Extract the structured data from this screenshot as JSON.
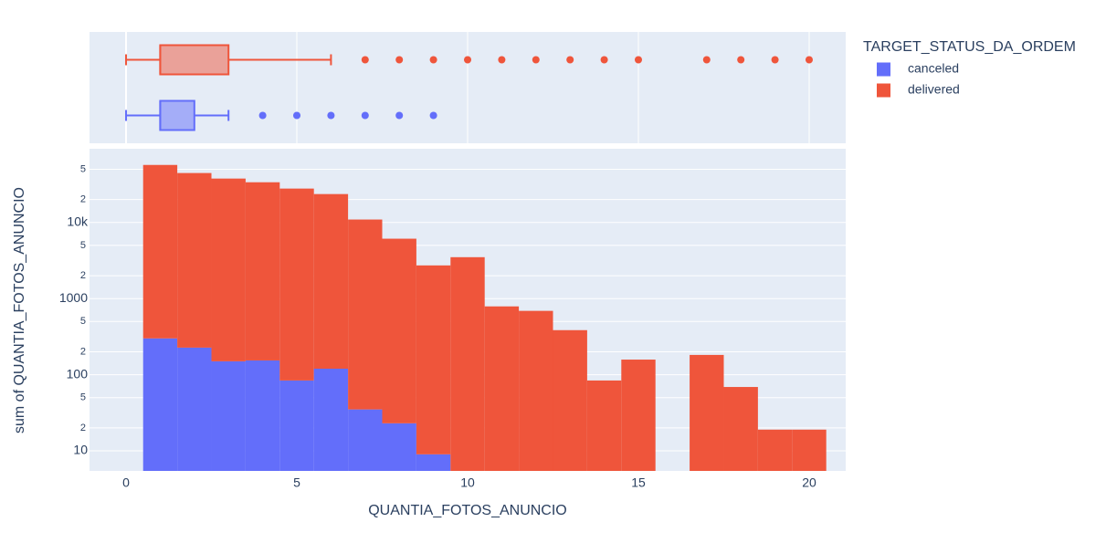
{
  "chart_data": [
    {
      "type": "box",
      "xlim": [
        -1.07,
        21.07
      ],
      "xticks": [
        0,
        5,
        10,
        15,
        20
      ],
      "grid": true,
      "series": [
        {
          "color": "#ef553b",
          "min": 0,
          "q1": 1,
          "median": 1,
          "q3": 3,
          "max": 6,
          "outliers": [
            7,
            8,
            9,
            10,
            11,
            12,
            13,
            14,
            15,
            17,
            18,
            19,
            20
          ]
        },
        {
          "color": "#636efa",
          "min": 0,
          "q1": 1,
          "median": 1,
          "q3": 2,
          "max": 3,
          "outliers": [
            4,
            5,
            6,
            7,
            8,
            9
          ]
        }
      ]
    },
    {
      "type": "histogram",
      "x_label": "QUANTIA_FOTOS_ANUNCIO",
      "y_label": "sum of QUANTIA_FOTOS_ANUNCIO",
      "legend_title": "TARGET_STATUS_DA_ORDEM",
      "log_y": true,
      "grid": true,
      "stacked": true,
      "bins": [
        0.5,
        1.5,
        2.5,
        3.5,
        4.5,
        5.5,
        6.5,
        7.5,
        8.5,
        9.5,
        10.5,
        11.5,
        12.5,
        13.5,
        14.5,
        15.5,
        16.5,
        17.5,
        18.5,
        19.5,
        20.5
      ],
      "series": [
        {
          "name": "canceled",
          "color": "#636efa",
          "values": [
            300,
            227,
            150,
            154,
            84,
            120,
            35,
            23,
            9,
            null,
            null,
            null,
            null,
            null,
            null,
            null,
            null,
            null,
            null,
            null
          ]
        },
        {
          "name": "delivered",
          "color": "#ef553b",
          "values": [
            56700,
            44400,
            37600,
            33600,
            27800,
            23500,
            10900,
            6100,
            2720,
            3500,
            790,
            690,
            385,
            84,
            158,
            null,
            182,
            69,
            19,
            19
          ]
        }
      ],
      "xlim": [
        -1.07,
        21.07
      ],
      "xticks": [
        0,
        5,
        10,
        15,
        20
      ],
      "ylim": [
        5.45,
        93000
      ],
      "yticks": [
        10,
        {
          "value": 20,
          "label": "2"
        },
        {
          "value": 50,
          "label": "5"
        },
        100,
        {
          "value": 200,
          "label": "2"
        },
        {
          "value": 500,
          "label": "5"
        },
        1000,
        {
          "value": 2000,
          "label": "2"
        },
        {
          "value": 5000,
          "label": "5"
        },
        {
          "value": 10000,
          "label": "10k"
        },
        {
          "value": 20000,
          "label": "2"
        },
        {
          "value": 50000,
          "label": "5"
        }
      ]
    }
  ]
}
